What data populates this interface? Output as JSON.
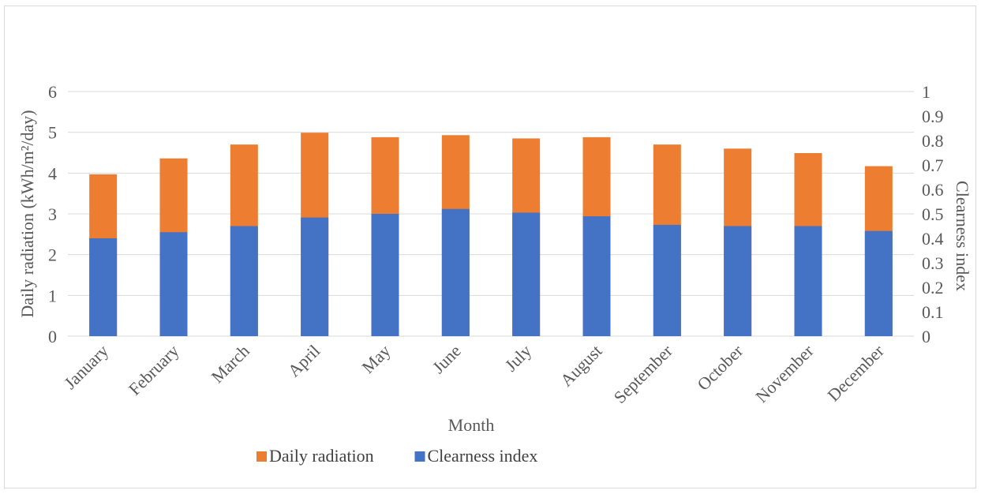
{
  "chart_data": {
    "type": "bar",
    "stacked": true,
    "title": "",
    "xlabel": "Month",
    "ylabel_left": "Daily radiation (kWh/m²/day)",
    "ylabel_right": "Clearness index",
    "ylim_left": [
      0,
      6
    ],
    "ylim_right": [
      0,
      1
    ],
    "yticks_left": [
      "0",
      "1",
      "2",
      "3",
      "4",
      "5",
      "6"
    ],
    "yticks_right": [
      "0",
      "0.1",
      "0.2",
      "0.3",
      "0.4",
      "0.5",
      "0.6",
      "0.7",
      "0.8",
      "0.9",
      "1"
    ],
    "grid": true,
    "legend_position": "bottom",
    "categories": [
      "January",
      "February",
      "March",
      "April",
      "May",
      "June",
      "July",
      "August",
      "September",
      "October",
      "November",
      "December"
    ],
    "series": [
      {
        "name": "Clearness index",
        "axis": "right",
        "color": "#4472c4",
        "values": [
          0.4,
          0.425,
          0.45,
          0.485,
          0.5,
          0.52,
          0.505,
          0.49,
          0.455,
          0.45,
          0.45,
          0.43
        ]
      },
      {
        "name": "Daily radiation",
        "axis": "left",
        "color": "#ed7d31",
        "values": [
          3.97,
          4.36,
          4.7,
          4.99,
          4.88,
          4.93,
          4.85,
          4.88,
          4.7,
          4.6,
          4.49,
          4.17
        ]
      }
    ],
    "legend_order": [
      "Daily radiation",
      "Clearness index"
    ]
  }
}
